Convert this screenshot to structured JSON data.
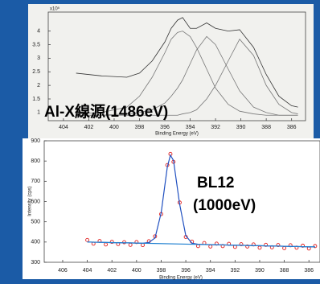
{
  "chart_data": [
    {
      "type": "line",
      "y_multiplier": "x10⁵",
      "x_label": "Binding Energy (eV)",
      "annotation": "Al-X線源(1486eV)",
      "x": [
        403,
        401,
        399,
        398,
        397,
        396,
        395.5,
        395,
        394.6,
        394,
        393.5,
        392.7,
        392,
        391,
        390.1,
        389,
        388,
        387,
        386,
        385.5
      ],
      "series": [
        {
          "color": "#333333",
          "values": [
            2.45,
            2.35,
            2.3,
            2.45,
            2.9,
            3.6,
            4.1,
            4.4,
            4.5,
            4.1,
            4.1,
            4.3,
            4.1,
            4.0,
            4.05,
            3.4,
            2.4,
            1.6,
            1.25,
            1.2
          ]
        },
        {
          "color": "#777777",
          "values": [
            0.95,
            1.0,
            1.2,
            1.6,
            2.3,
            3.2,
            3.7,
            3.95,
            4.0,
            3.8,
            3.4,
            2.6,
            1.9,
            1.3,
            1.05,
            0.95,
            0.9,
            0.9,
            0.9,
            0.9
          ]
        },
        {
          "color": "#777777",
          "values": [
            0.9,
            0.9,
            0.95,
            1.0,
            1.1,
            1.35,
            1.6,
            1.9,
            2.2,
            2.8,
            3.3,
            3.8,
            3.5,
            2.6,
            1.8,
            1.2,
            1.0,
            0.9,
            0.9,
            0.9
          ]
        },
        {
          "color": "#777777",
          "values": [
            0.9,
            0.9,
            0.9,
            0.9,
            0.9,
            0.9,
            0.9,
            0.9,
            0.95,
            1.0,
            1.1,
            1.5,
            2.0,
            2.9,
            3.7,
            3.1,
            2.0,
            1.3,
            1.0,
            0.95
          ]
        }
      ],
      "xlim": [
        405.2,
        384.9
      ],
      "xticks": [
        404,
        402,
        400,
        398,
        396,
        394,
        392,
        390,
        388,
        386
      ],
      "ylim": [
        0.7,
        4.7
      ],
      "yticks": [
        1,
        1.5,
        2,
        2.5,
        3,
        3.5,
        4
      ]
    },
    {
      "type": "line",
      "x_label": "Binding Energy (eV)",
      "y_label": "Intensity (cps)",
      "annotation": [
        "BL12",
        "(1000eV)"
      ],
      "x": [
        404,
        403.5,
        403,
        402.5,
        402,
        401.5,
        401,
        400.5,
        400,
        399.5,
        399,
        398.5,
        398,
        397.5,
        397.25,
        397,
        396.5,
        396,
        395.5,
        395,
        394.5,
        394,
        393.5,
        393,
        392.5,
        392,
        391.5,
        391,
        390.5,
        390,
        389.5,
        389,
        388.5,
        388,
        387.5,
        387,
        386.5,
        386,
        385.5
      ],
      "series": [
        {
          "color": "#e02020",
          "marker": "circle",
          "values": [
            410,
            392,
            405,
            388,
            401,
            390,
            399,
            386,
            400,
            385,
            404,
            428,
            538,
            780,
            835,
            796,
            595,
            425,
            402,
            380,
            395,
            378,
            392,
            380,
            391,
            376,
            389,
            378,
            388,
            372,
            386,
            374,
            385,
            370,
            384,
            372,
            382,
            368,
            380
          ]
        },
        {
          "color": "#2050c0",
          "values": [
            400,
            399,
            399,
            398,
            397,
            397,
            396,
            396,
            395,
            394,
            398,
            420,
            545,
            771,
            829,
            803,
            587,
            431,
            394,
            389,
            388,
            387,
            386,
            386,
            385,
            384,
            384,
            383,
            382,
            382,
            381,
            380,
            380,
            379,
            378,
            378,
            377,
            376,
            376
          ]
        },
        {
          "color": "#2080d0",
          "x": [
            404,
            385.5
          ],
          "values": [
            400,
            376
          ]
        }
      ],
      "xlim": [
        407.5,
        385.1
      ],
      "xticks": [
        406,
        404,
        402,
        400,
        398,
        396,
        394,
        392,
        390,
        388,
        386
      ],
      "ylim": [
        300,
        900
      ],
      "yticks": [
        300,
        400,
        500,
        600,
        700,
        800,
        900
      ]
    }
  ]
}
